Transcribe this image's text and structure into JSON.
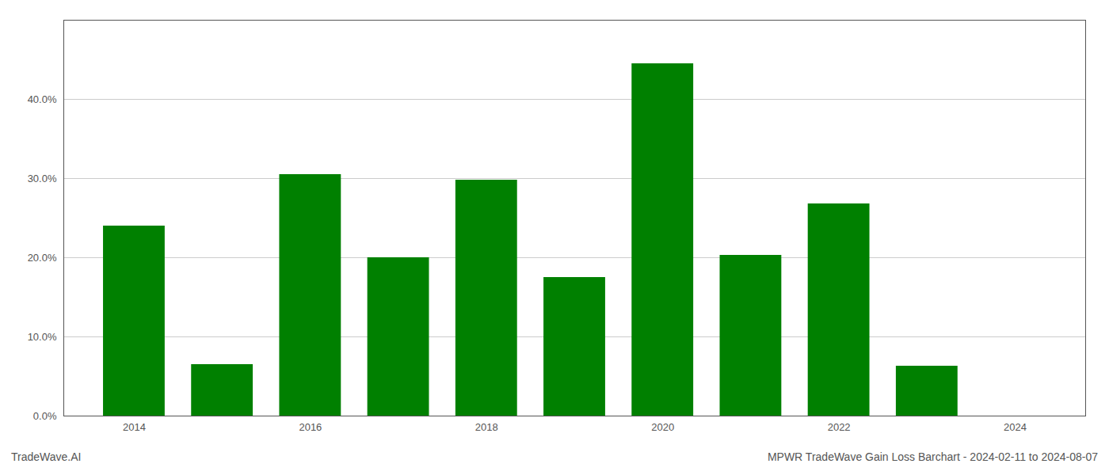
{
  "chart_data": {
    "type": "bar",
    "x": [
      2014,
      2015,
      2016,
      2017,
      2018,
      2019,
      2020,
      2021,
      2022,
      2023,
      2024
    ],
    "values": [
      0.24,
      0.065,
      0.305,
      0.2,
      0.298,
      0.175,
      0.445,
      0.203,
      0.268,
      0.063,
      0.0
    ],
    "color": "#008000",
    "xlim": [
      2013.2,
      2024.8
    ],
    "xticks": [
      2014,
      2016,
      2018,
      2020,
      2022,
      2024
    ],
    "ylim": [
      0,
      0.5
    ],
    "yticks": [
      {
        "value": 0.0,
        "label": "0.0%"
      },
      {
        "value": 0.1,
        "label": "10.0%"
      },
      {
        "value": 0.2,
        "label": "20.0%"
      },
      {
        "value": 0.3,
        "label": "30.0%"
      },
      {
        "value": 0.4,
        "label": "40.0%"
      }
    ],
    "grid": true,
    "annotations": [
      "TradeWave.AI",
      "MPWR TradeWave Gain Loss Barchart - 2024-02-11 to 2024-08-07"
    ]
  }
}
